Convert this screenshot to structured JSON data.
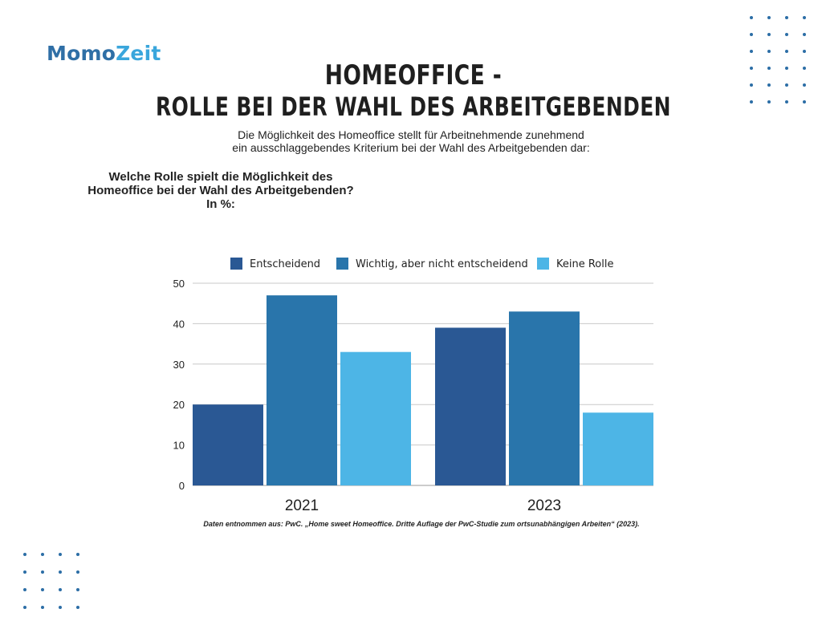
{
  "logo": {
    "part1": "Momo",
    "part2": "Zeit"
  },
  "title_line1": "HOMEOFFICE -",
  "title_line2": "ROLLE BEI DER WAHL DES ARBEITGEBENDEN",
  "subtitle_line1": "Die Möglichkeit des Homeoffice stellt für Arbeitnehmende zunehmend",
  "subtitle_line2": "ein ausschlaggebendes Kriterium bei der Wahl des Arbeitgebenden dar:",
  "question_line1": "Welche Rolle spielt die Möglichkeit des",
  "question_line2": "Homeoffice bei der Wahl des Arbeitgebenden?",
  "question_unit": "In %:",
  "source": "Daten entnommen aus: PwC. „Home sweet Homeoffice. Dritte Auflage der PwC-Studie zum ortsunabhängigen Arbeiten“ (2023).",
  "chart_data": {
    "type": "bar",
    "categories": [
      "2021",
      "2023"
    ],
    "series": [
      {
        "name": "Entscheidend",
        "values": [
          20,
          39
        ],
        "color": "#2a5894"
      },
      {
        "name": "Wichtig, aber nicht entscheidend",
        "values": [
          47,
          43
        ],
        "color": "#2975ab"
      },
      {
        "name": "Keine Rolle",
        "values": [
          33,
          18
        ],
        "color": "#4db5e6"
      }
    ],
    "ylim": [
      0,
      50
    ],
    "yticks": [
      "0",
      "10",
      "20",
      "30",
      "40",
      "50"
    ],
    "grid": true,
    "legend": "top"
  }
}
